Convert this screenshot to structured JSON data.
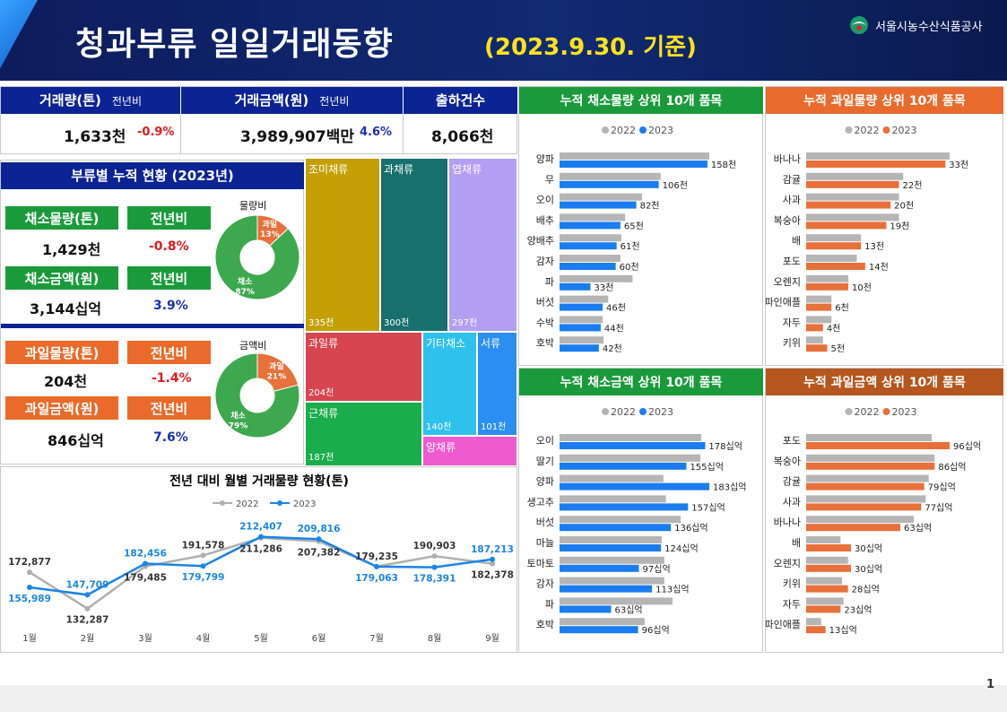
{
  "header": {
    "title": "청과부류 일일거래동향",
    "date": "(2023.9.30. 기준)",
    "org": "서울시농수산식품공사"
  },
  "kpi": {
    "volume": {
      "label": "거래량(톤)",
      "yoy_label": "전년비",
      "value": "1,633천",
      "yoy": "-0.9%"
    },
    "amount": {
      "label": "거래금액(원)",
      "yoy_label": "전년비",
      "value": "3,989,907백만",
      "yoy": "4.6%"
    },
    "count": {
      "label": "출하건수",
      "value": "8,066천"
    }
  },
  "cumulative": {
    "title": "부류별 누적 현황 (2023년)",
    "veg_vol_label": "채소물량(톤)",
    "veg_vol": "1,429천",
    "veg_vol_yoy": "-0.8%",
    "veg_amt_label": "채소금액(원)",
    "veg_amt": "3,144십억",
    "veg_amt_yoy": "3.9%",
    "fruit_vol_label": "과일물량(톤)",
    "fruit_vol": "204천",
    "fruit_vol_yoy": "-1.4%",
    "fruit_amt_label": "과일금액(원)",
    "fruit_amt": "846십억",
    "fruit_amt_yoy": "7.6%",
    "yoy_label": "전년비",
    "donut_vol_title": "물량비",
    "donut_amt_title": "금액비",
    "colors": {
      "veg": "#3ea84f",
      "fruit": "#e8703a"
    }
  },
  "chart_data": [
    {
      "type": "pie",
      "title": "물량비",
      "categories": [
        "과일",
        "채소"
      ],
      "values": [
        13,
        87
      ],
      "labels": [
        "13%",
        "87%"
      ]
    },
    {
      "type": "pie",
      "title": "금액비",
      "categories": [
        "과일",
        "채소"
      ],
      "values": [
        21,
        79
      ],
      "labels": [
        "21%",
        "79%"
      ]
    },
    {
      "type": "treemap",
      "categories": [
        "조미채류",
        "과채류",
        "엽채류",
        "과일류",
        "근채류",
        "기타채소",
        "서류",
        "양채류"
      ],
      "values": [
        335,
        300,
        297,
        204,
        187,
        140,
        101,
        null
      ],
      "labels": [
        "335천",
        "300천",
        "297천",
        "204천",
        "187천",
        "140천",
        "101천",
        ""
      ]
    },
    {
      "type": "line",
      "title": "전년 대비 월별 거래물량 현황(톤)",
      "categories": [
        "1월",
        "2월",
        "3월",
        "4월",
        "5월",
        "6월",
        "7월",
        "8월",
        "9월"
      ],
      "series": [
        {
          "name": "2022",
          "color": "#b0b0b0",
          "values": [
            172877,
            132287,
            179485,
            191578,
            211286,
            207382,
            179235,
            190903,
            182378
          ],
          "labels": [
            "172,877",
            "132,287",
            "179,485",
            "191,578",
            "211,286",
            "207,382",
            "179,235",
            "190,903",
            "182,378"
          ]
        },
        {
          "name": "2023",
          "color": "#1a84e8",
          "values": [
            155989,
            147709,
            182456,
            179799,
            212407,
            209816,
            179063,
            178391,
            187213
          ],
          "labels": [
            "155,989",
            "147,709",
            "182,456",
            "179,799",
            "212,407",
            "209,816",
            "179,063",
            "178,391",
            "187,213"
          ]
        }
      ]
    },
    {
      "type": "bar",
      "orientation": "horizontal",
      "title": "누적 채소물량 상위 10개 품목",
      "categories": [
        "양파",
        "무",
        "오이",
        "배추",
        "양배추",
        "감자",
        "파",
        "버섯",
        "수박",
        "호박"
      ],
      "series": [
        {
          "name": "2022",
          "color": "#b5b5b5",
          "values": [
            160,
            108,
            88,
            70,
            66,
            65,
            78,
            52,
            46,
            47
          ]
        },
        {
          "name": "2023",
          "color": "#1a7cf0",
          "values": [
            158,
            106,
            82,
            65,
            61,
            60,
            33,
            46,
            44,
            42
          ],
          "labels": [
            "158천",
            "106천",
            "82천",
            "65천",
            "61천",
            "60천",
            "33천",
            "46천",
            "44천",
            "42천"
          ]
        }
      ]
    },
    {
      "type": "bar",
      "orientation": "horizontal",
      "title": "누적 과일물량 상위 10개 품목",
      "categories": [
        "바나나",
        "감귤",
        "사과",
        "복숭아",
        "배",
        "포도",
        "오렌지",
        "파인애플",
        "자두",
        "키위"
      ],
      "series": [
        {
          "name": "2022",
          "color": "#b5b5b5",
          "values": [
            34,
            23,
            22,
            22,
            13,
            12,
            10,
            6,
            6,
            4
          ]
        },
        {
          "name": "2023",
          "color": "#e8703a",
          "values": [
            33,
            22,
            20,
            19,
            13,
            14,
            10,
            6,
            4,
            5
          ],
          "labels": [
            "33천",
            "22천",
            "20천",
            "19천",
            "13천",
            "14천",
            "10천",
            "6천",
            "4천",
            "5천"
          ]
        }
      ]
    },
    {
      "type": "bar",
      "orientation": "horizontal",
      "title": "누적 채소금액 상위 10개 품목",
      "categories": [
        "오이",
        "딸기",
        "양파",
        "생고추",
        "버섯",
        "마늘",
        "토마토",
        "감자",
        "파",
        "호박"
      ],
      "series": [
        {
          "name": "2022",
          "color": "#b5b5b5",
          "values": [
            173,
            172,
            127,
            130,
            148,
            125,
            128,
            128,
            138,
            104
          ]
        },
        {
          "name": "2023",
          "color": "#1a7cf0",
          "values": [
            178,
            155,
            183,
            157,
            136,
            124,
            97,
            113,
            63,
            96
          ],
          "labels": [
            "178십억",
            "155십억",
            "183십억",
            "157십억",
            "136십억",
            "124십억",
            "97십억",
            "113십억",
            "63십억",
            "96십억"
          ]
        }
      ]
    },
    {
      "type": "bar",
      "orientation": "horizontal",
      "title": "누적 과일금액 상위 10개 품목",
      "categories": [
        "포도",
        "복숭아",
        "감귤",
        "사과",
        "바나나",
        "배",
        "오렌지",
        "키위",
        "자두",
        "파인애플"
      ],
      "series": [
        {
          "name": "2022",
          "color": "#b5b5b5",
          "values": [
            84,
            86,
            82,
            80,
            72,
            23,
            28,
            24,
            25,
            10
          ]
        },
        {
          "name": "2023",
          "color": "#e8703a",
          "values": [
            96,
            86,
            79,
            77,
            63,
            30,
            30,
            28,
            23,
            13
          ],
          "labels": [
            "96십억",
            "86십억",
            "79십억",
            "77십억",
            "63십억",
            "30십억",
            "30십억",
            "28십억",
            "23십억",
            "13십억"
          ]
        }
      ]
    }
  ],
  "chart_headers": {
    "veg_vol": "#1b9a3c",
    "fruit_vol": "#e86a2c",
    "veg_amt": "#1b9a3c",
    "fruit_amt": "#b5561f"
  },
  "legend": {
    "y2022": "2022",
    "y2023": "2023"
  },
  "page": "1"
}
